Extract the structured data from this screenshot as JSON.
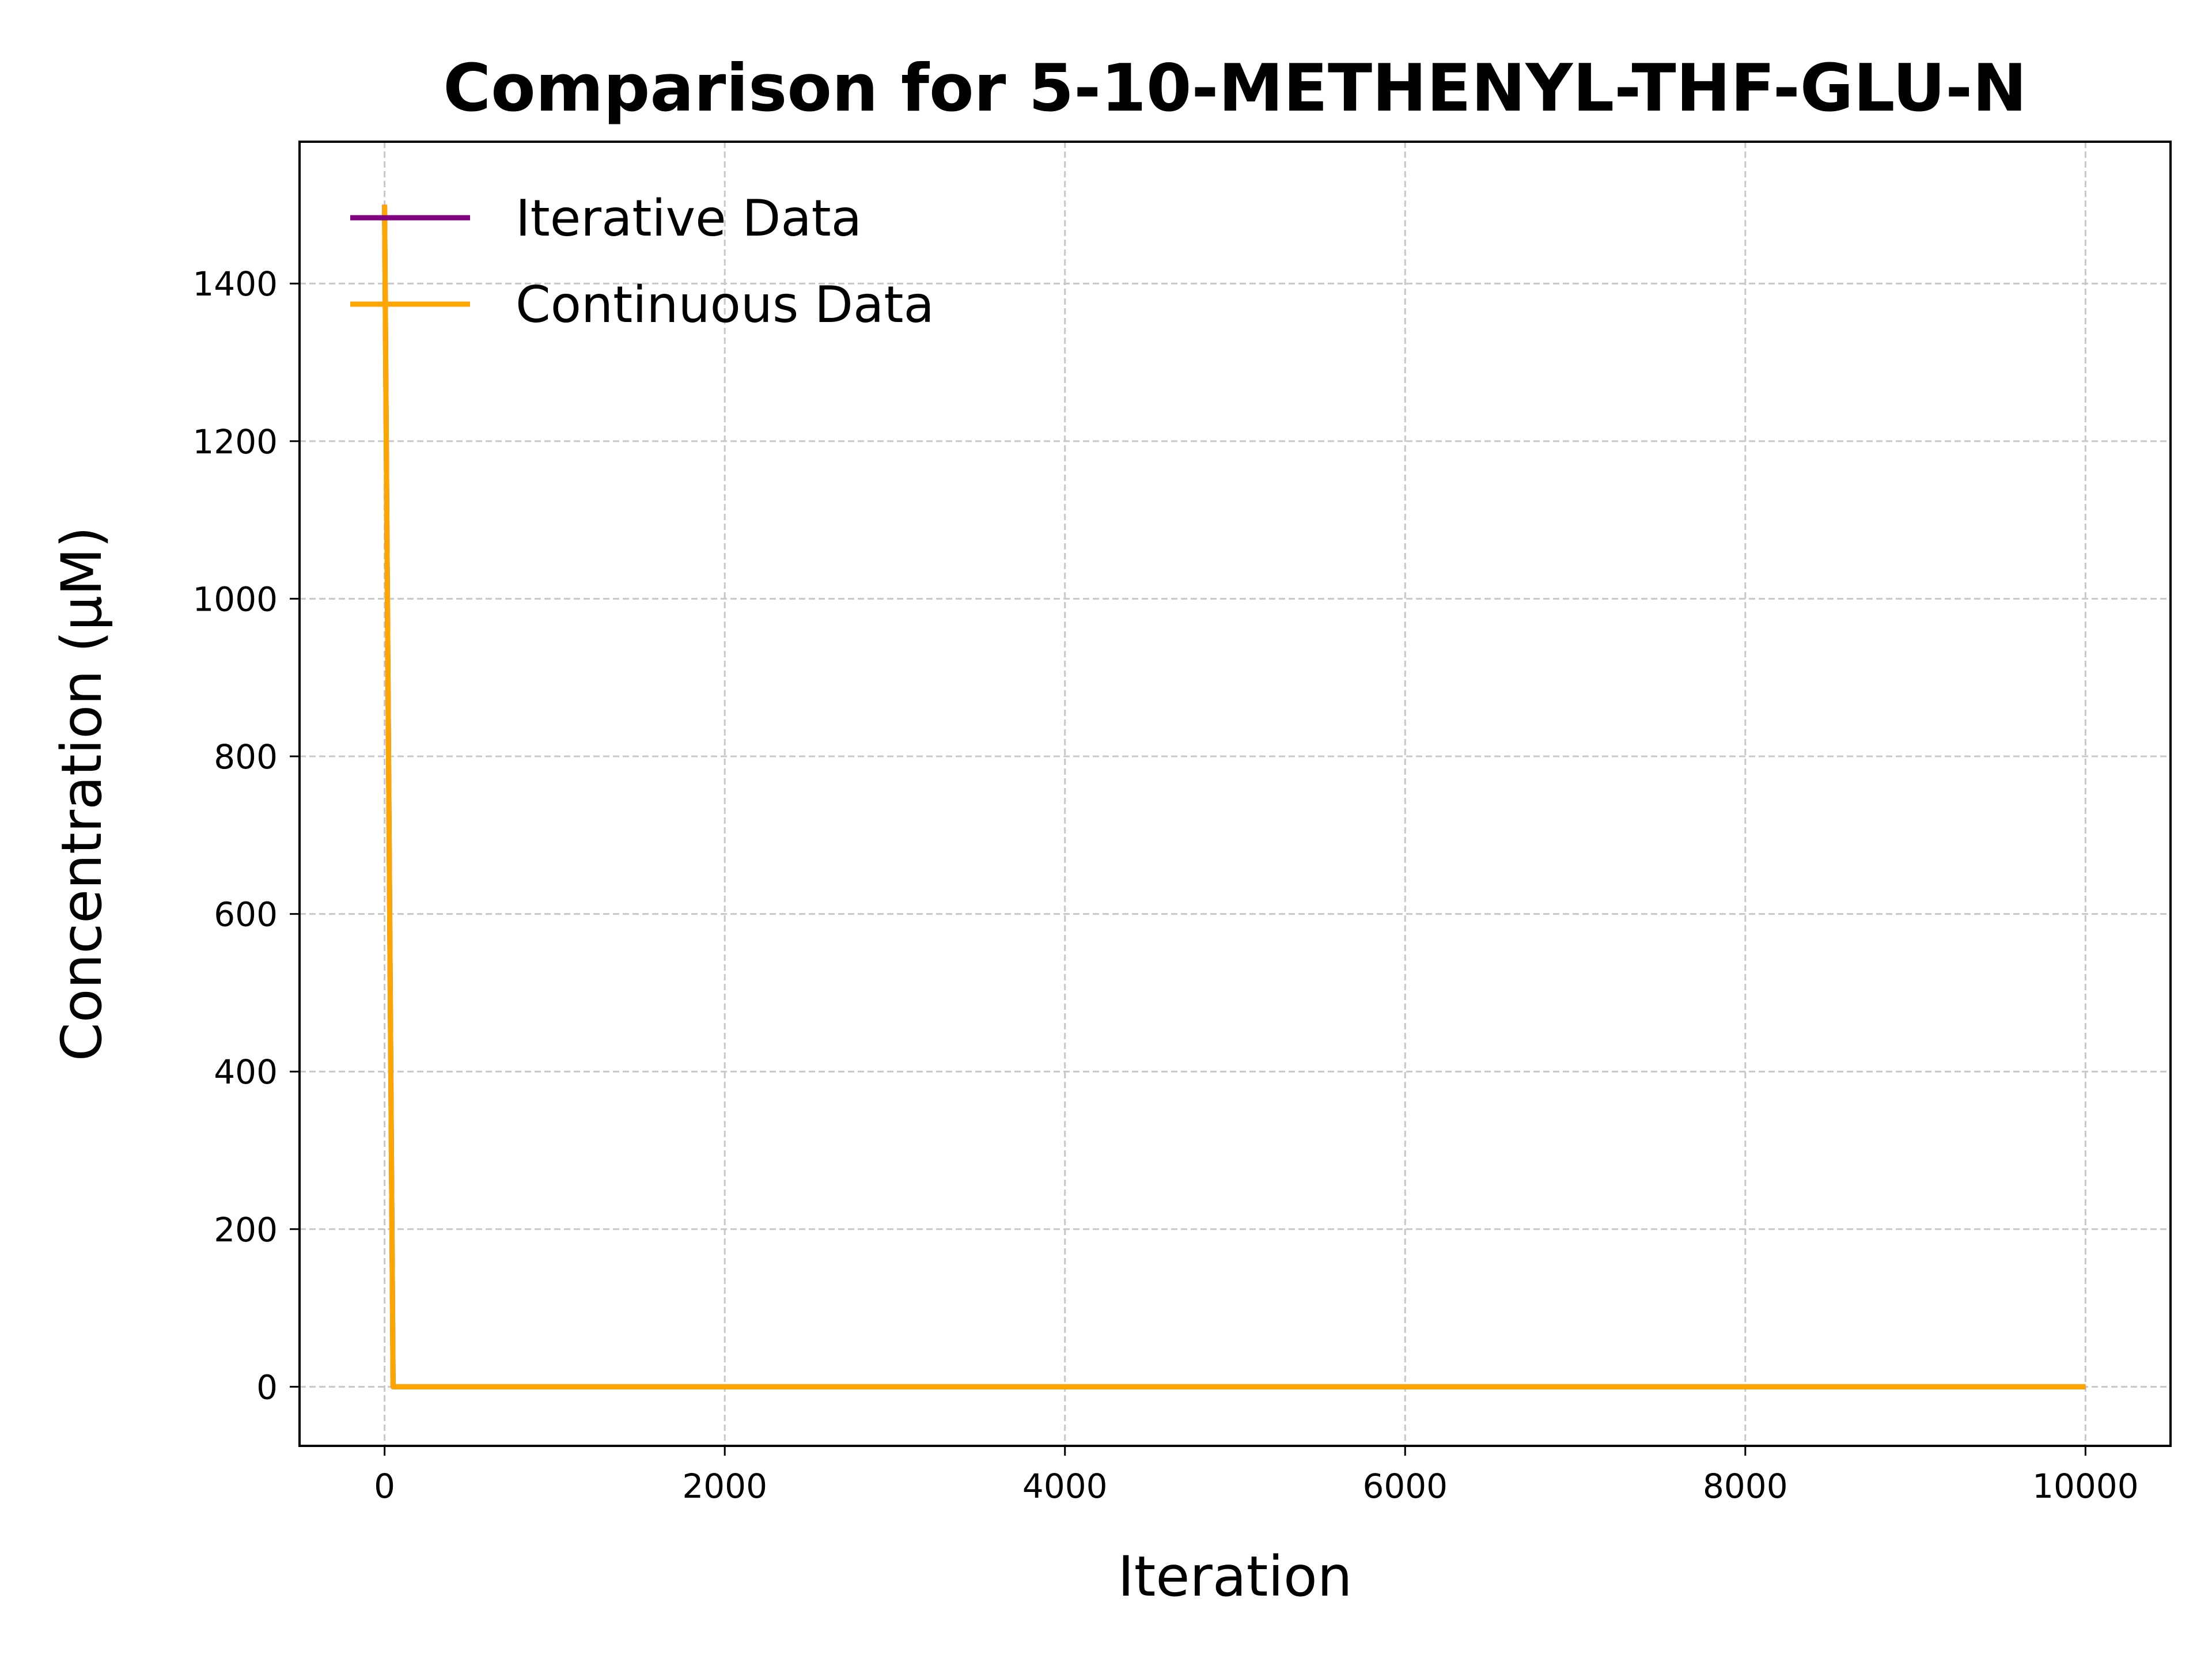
{
  "chart_data": {
    "type": "line",
    "title": "Comparison for 5-10-METHENYL-THF-GLU-N",
    "xlabel": "Iteration",
    "ylabel": "Concentration (μM)",
    "xlim": [
      -500,
      10500
    ],
    "ylim": [
      -75,
      1580
    ],
    "xticks": [
      0,
      2000,
      4000,
      6000,
      8000,
      10000
    ],
    "yticks": [
      0,
      200,
      400,
      600,
      800,
      1000,
      1200,
      1400
    ],
    "grid": true,
    "legend_position": "top-left",
    "series": [
      {
        "name": "Iterative Data",
        "color": "#800080",
        "x": [
          0,
          50,
          100,
          1000,
          2000,
          4000,
          6000,
          8000,
          10000
        ],
        "y": [
          1500,
          0,
          0,
          0,
          0,
          0,
          0,
          0,
          0
        ]
      },
      {
        "name": "Continuous Data",
        "color": "#FFA500",
        "x": [
          0,
          50,
          100,
          1000,
          2000,
          4000,
          6000,
          8000,
          10000
        ],
        "y": [
          1500,
          0,
          0,
          0,
          0,
          0,
          0,
          0,
          0
        ]
      }
    ]
  }
}
